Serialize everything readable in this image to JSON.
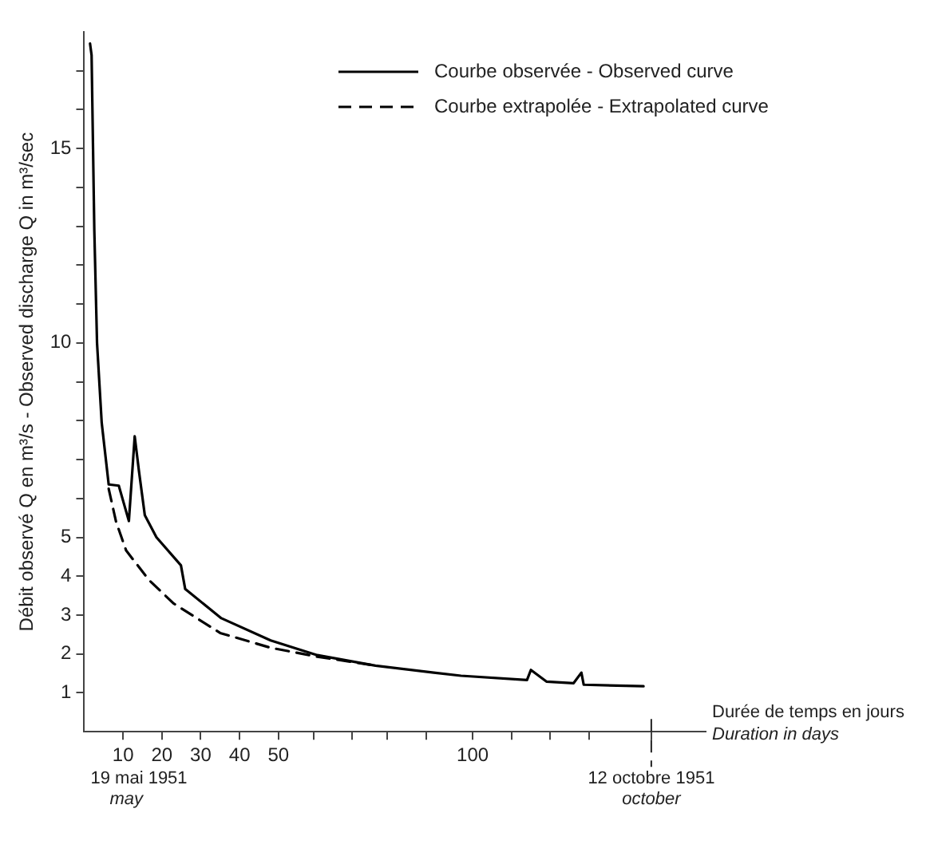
{
  "chart_data": {
    "type": "line",
    "xlabel": "Durée de temps en jours\nDuration in days",
    "ylabel": "Débit observé Q en m³/s - Observed discharge Q in m³/sec",
    "xlim": [
      0,
      160
    ],
    "xticks": [
      10,
      20,
      30,
      40,
      50,
      {
        "value": 59,
        "label": null
      },
      {
        "value": 69,
        "label": null
      },
      {
        "value": 78,
        "label": null
      },
      {
        "value": 88,
        "label": null
      },
      {
        "value": 100,
        "label": "100"
      },
      {
        "value": 110,
        "label": null
      },
      {
        "value": 120,
        "label": null
      },
      {
        "value": 130,
        "label": null
      },
      {
        "value": 146,
        "label": null
      }
    ],
    "ylim": [
      0,
      18
    ],
    "yticks": [
      1,
      2,
      3,
      4,
      5,
      {
        "value": 6,
        "label": null
      },
      {
        "value": 7,
        "label": null
      },
      {
        "value": 8,
        "label": null
      },
      {
        "value": 9,
        "label": null
      },
      10,
      {
        "value": 11,
        "label": null
      },
      {
        "value": 12,
        "label": null
      },
      {
        "value": 13,
        "label": null
      },
      {
        "value": 14,
        "label": null
      },
      15,
      {
        "value": 16,
        "label": null
      },
      {
        "value": 17,
        "label": null
      }
    ],
    "grid": false,
    "legend": "top right",
    "marker": "none",
    "series": [
      {
        "name": "Courbe observée - Observed curve",
        "color": "#000000",
        "line_style": "solid",
        "x": [
          1.5,
          1.9,
          2.6,
          3.3,
          4.5,
          6.3,
          8.9,
          11.5,
          13,
          14.1,
          15.6,
          18.6,
          24.9,
          26,
          35.3,
          48,
          60,
          75,
          90,
          97,
          114,
          115,
          119,
          126,
          128,
          128.6,
          144
        ],
        "values": [
          17.7,
          17.4,
          12.9,
          10.0,
          7.95,
          6.36,
          6.33,
          5.42,
          7.6,
          6.7,
          5.57,
          5.0,
          4.28,
          3.67,
          2.92,
          2.35,
          1.97,
          1.7,
          1.52,
          1.44,
          1.33,
          1.59,
          1.29,
          1.25,
          1.52,
          1.21,
          1.17
        ]
      },
      {
        "name": "Courbe extrapolée - Extrapolated curve",
        "color": "#000000",
        "line_style": "dashed",
        "x": [
          6.3,
          8.2,
          10.8,
          16.7,
          23,
          35,
          48,
          60,
          75
        ],
        "values": [
          6.25,
          5.4,
          4.66,
          3.9,
          3.3,
          2.54,
          2.16,
          1.93,
          1.7
        ]
      }
    ],
    "ref_lines": [
      {
        "axis": "x",
        "value": 146,
        "label": "12 octobre 1951\noctober",
        "line_style": "dashed"
      }
    ],
    "annotations": [
      "19 mai 1951\nmay"
    ]
  }
}
